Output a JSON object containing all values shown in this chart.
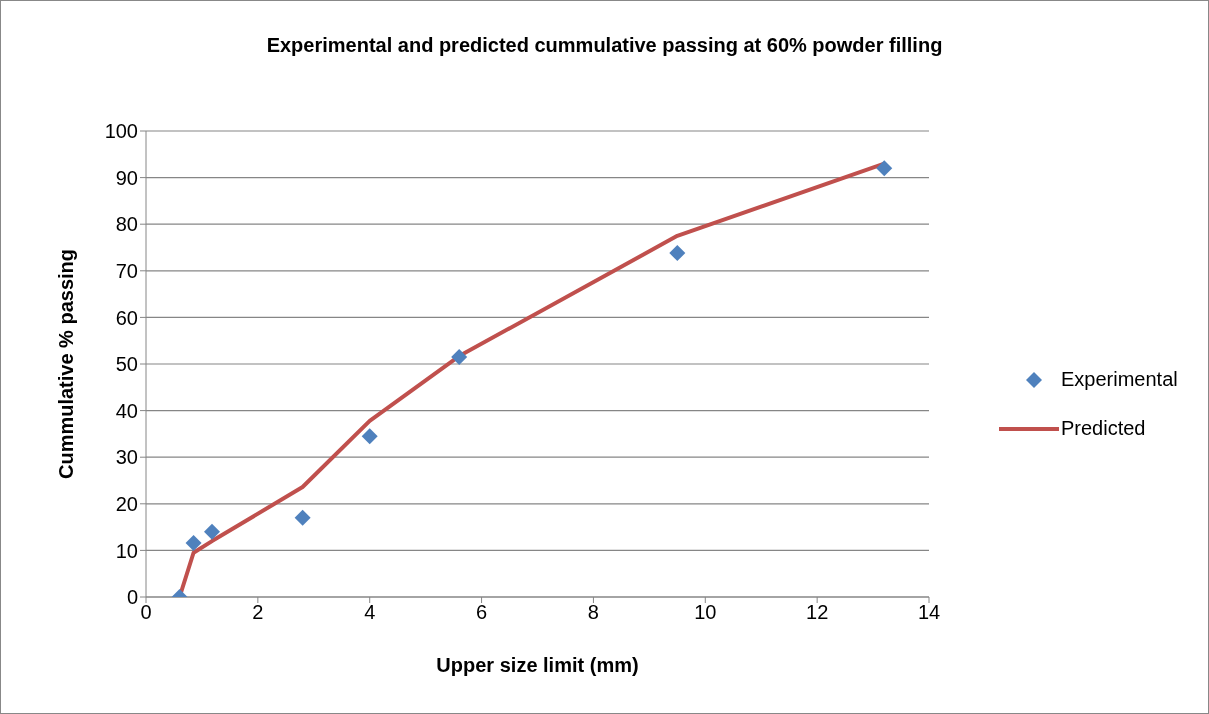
{
  "chart_data": {
    "type": "scatter",
    "title": "Experimental and predicted cummulative passing at 60% powder filling",
    "xlabel": "Upper size limit (mm)",
    "ylabel": "Cummulative % passing",
    "series": [
      {
        "name": "Experimental",
        "color": "#4f81bd",
        "marker": "diamond",
        "x": [
          0.6,
          0.85,
          1.18,
          2.8,
          4,
          5.6,
          9.5,
          13.2
        ],
        "values": [
          0,
          11.6,
          14,
          17,
          34.5,
          51.5,
          73.8,
          92
        ]
      },
      {
        "name": "Predicted",
        "type": "line",
        "color": "#c0504d",
        "marker": "none",
        "line_style": "solid",
        "x": [
          0.6,
          0.85,
          1.18,
          2.8,
          4,
          5.6,
          9.5,
          13.2
        ],
        "values": [
          0,
          9.5,
          12,
          23.6,
          37.8,
          51.7,
          77.5,
          93
        ]
      }
    ],
    "xlim": [
      0,
      14
    ],
    "xticks": [
      0,
      2,
      4,
      6,
      8,
      10,
      12,
      14
    ],
    "ylim": [
      0,
      100
    ],
    "yticks": [
      0,
      10,
      20,
      30,
      40,
      50,
      60,
      70,
      80,
      90,
      100
    ],
    "grid": "y",
    "legend": "right"
  }
}
